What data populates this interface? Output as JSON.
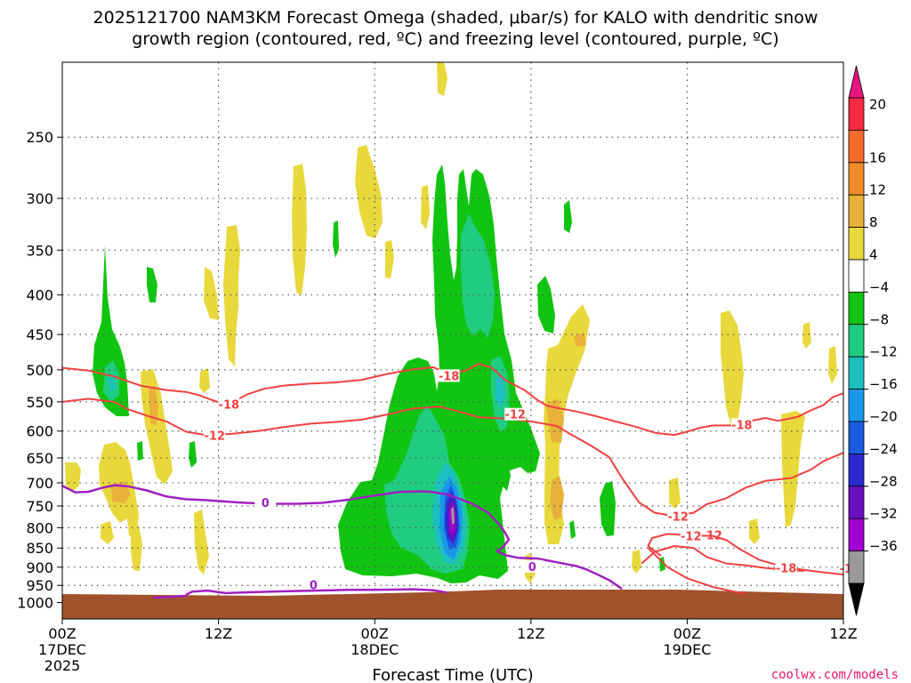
{
  "chart_data": {
    "type": "heatmap",
    "title_line1": "2025121700 NAM3KM Forecast Omega (shaded, μbar/s) for KALO with dendritic snow",
    "title_line2": "growth region (contoured, red, ºC) and freezing level (contoured, purple, ºC)",
    "xlabel": "Forecast Time (UTC)",
    "credit": "coolwx.com/models",
    "y_axis": {
      "scale": "log-pressure",
      "range": [
        1050,
        200
      ],
      "ticks": [
        250,
        300,
        350,
        400,
        450,
        500,
        550,
        600,
        650,
        700,
        750,
        800,
        850,
        900,
        950,
        1000
      ],
      "gridlines": true
    },
    "x_axis": {
      "range_hours": [
        0,
        60
      ],
      "ticks": [
        {
          "hour": 0,
          "label": "00Z",
          "sub1": "17DEC",
          "sub2": "2025"
        },
        {
          "hour": 12,
          "label": "12Z",
          "sub1": "",
          "sub2": ""
        },
        {
          "hour": 24,
          "label": "00Z",
          "sub1": "18DEC",
          "sub2": ""
        },
        {
          "hour": 36,
          "label": "12Z",
          "sub1": "",
          "sub2": ""
        },
        {
          "hour": 48,
          "label": "00Z",
          "sub1": "19DEC",
          "sub2": ""
        },
        {
          "hour": 60,
          "label": "12Z",
          "sub1": "",
          "sub2": ""
        }
      ],
      "gridlines": true
    },
    "colorbar": {
      "labels": [
        "20",
        "16",
        "12",
        "8",
        "4",
        "−4",
        "−8",
        "−12",
        "−16",
        "−20",
        "−24",
        "−28",
        "−32",
        "−36"
      ],
      "colors": [
        "#f52a42",
        "#f56a2a",
        "#f08c28",
        "#e8b23a",
        "#e8d83c",
        "#ffffff",
        "#11c411",
        "#20cc80",
        "#1cc0c0",
        "#1a98e8",
        "#1a5ce0",
        "#2a2ad0",
        "#6a10c0",
        "#a000d0",
        "#9a9a9a"
      ],
      "top_arrow_color": "#e8147e",
      "bottom_arrow_color": "#000000"
    },
    "ground_color": "#a0522d",
    "dgz_contours": [
      {
        "label": "-18",
        "color": "#f04040",
        "label_points": [
          [
            12.8,
            555
          ],
          [
            29.7,
            510
          ],
          [
            52.2,
            590
          ],
          [
            60.5,
            905
          ]
        ],
        "points": [
          [
            0,
            497
          ],
          [
            2,
            501
          ],
          [
            4,
            510
          ],
          [
            6,
            524
          ],
          [
            8,
            531
          ],
          [
            9.5,
            534
          ],
          [
            10.5,
            539
          ],
          [
            11.5,
            547
          ],
          [
            12.5,
            554
          ],
          [
            13.3,
            548
          ],
          [
            14.3,
            537
          ],
          [
            15.5,
            529
          ],
          [
            17,
            524
          ],
          [
            19,
            521
          ],
          [
            21,
            519
          ],
          [
            23,
            515
          ],
          [
            25,
            506
          ],
          [
            27,
            499
          ],
          [
            28.5,
            496
          ],
          [
            29.2,
            502
          ],
          [
            30,
            505
          ],
          [
            31,
            501
          ],
          [
            32,
            491
          ],
          [
            33,
            497
          ],
          [
            34,
            515
          ],
          [
            35.5,
            531
          ],
          [
            36.5,
            547
          ],
          [
            37.2,
            556
          ],
          [
            38,
            560
          ],
          [
            39.5,
            566
          ],
          [
            41,
            574
          ],
          [
            42.5,
            583
          ],
          [
            44,
            592
          ],
          [
            45.5,
            603
          ],
          [
            47,
            607
          ],
          [
            48,
            601
          ],
          [
            49,
            594
          ],
          [
            50,
            590
          ],
          [
            51.5,
            590
          ],
          [
            52.5,
            584
          ],
          [
            54,
            577
          ],
          [
            55,
            582
          ],
          [
            56.5,
            575
          ],
          [
            57.5,
            564
          ],
          [
            58.5,
            555
          ],
          [
            59.2,
            542
          ],
          [
            60,
            536
          ]
        ]
      },
      {
        "label": "-12",
        "color": "#f04040",
        "label_points": [
          [
            11.7,
            609
          ],
          [
            34.8,
            572
          ],
          [
            47.3,
            775
          ],
          [
            49.9,
            820
          ]
        ],
        "points": [
          [
            0,
            550
          ],
          [
            2,
            545
          ],
          [
            4,
            550
          ],
          [
            5,
            562
          ],
          [
            6.5,
            573
          ],
          [
            8,
            583
          ],
          [
            9.5,
            601
          ],
          [
            11,
            607
          ],
          [
            13,
            605
          ],
          [
            15,
            600
          ],
          [
            17,
            593
          ],
          [
            19,
            587
          ],
          [
            21,
            584
          ],
          [
            23,
            580
          ],
          [
            25,
            571
          ],
          [
            27,
            561
          ],
          [
            29,
            558
          ],
          [
            30.5,
            566
          ],
          [
            32,
            576
          ],
          [
            34,
            578
          ],
          [
            36,
            583
          ],
          [
            38,
            591
          ],
          [
            39,
            605
          ],
          [
            40.5,
            625
          ],
          [
            42,
            648
          ],
          [
            43,
            690
          ],
          [
            44.3,
            742
          ],
          [
            45.5,
            765
          ],
          [
            47,
            773
          ],
          [
            48.5,
            765
          ],
          [
            49.5,
            746
          ],
          [
            51,
            733
          ],
          [
            52.5,
            710
          ],
          [
            54,
            696
          ],
          [
            56,
            690
          ],
          [
            57.5,
            673
          ],
          [
            58.5,
            656
          ],
          [
            60,
            640
          ]
        ]
      },
      {
        "label": "-12",
        "color": "#f04040",
        "label_points": [
          [
            48.3,
            822
          ]
        ],
        "points": [
          [
            46,
            870
          ],
          [
            45,
            845
          ],
          [
            45.3,
            825
          ],
          [
            46.5,
            815
          ],
          [
            48,
            818
          ],
          [
            50,
            820
          ],
          [
            51,
            830
          ],
          [
            52,
            852
          ],
          [
            53.5,
            880
          ],
          [
            55,
            895
          ],
          [
            56.5,
            905
          ],
          [
            58,
            912
          ],
          [
            60,
            920
          ]
        ]
      },
      {
        "label": "-18",
        "color": "#f04040",
        "label_points": [
          [
            55.6,
            904
          ]
        ],
        "points": [
          [
            44.5,
            890
          ],
          [
            45.5,
            860
          ],
          [
            47,
            845
          ],
          [
            48.5,
            850
          ],
          [
            49.5,
            873
          ],
          [
            51,
            890
          ],
          [
            52.5,
            895
          ],
          [
            54,
            902
          ],
          [
            55.5,
            907
          ],
          [
            57,
            910
          ]
        ]
      },
      {
        "label": "-18",
        "color": "#f04040",
        "label_points": [],
        "points": [
          [
            45,
            850
          ],
          [
            46.5,
            900
          ],
          [
            48,
            930
          ],
          [
            50,
            955
          ],
          [
            52.5,
            975
          ]
        ]
      }
    ],
    "freezing_contours": [
      {
        "label": "0",
        "color": "#a020c0",
        "label_points": [
          [
            15.6,
            744
          ],
          [
            36.1,
            900
          ],
          [
            19.3,
            951
          ]
        ],
        "points": [
          [
            0,
            706
          ],
          [
            1,
            720
          ],
          [
            2,
            719
          ],
          [
            3,
            711
          ],
          [
            4,
            705
          ],
          [
            5,
            707
          ],
          [
            6.5,
            716
          ],
          [
            8,
            729
          ],
          [
            9.5,
            735
          ],
          [
            11,
            737
          ],
          [
            12.5,
            740
          ],
          [
            14,
            743
          ],
          [
            16,
            745
          ],
          [
            18,
            745
          ],
          [
            20,
            743
          ],
          [
            22,
            736
          ],
          [
            24,
            727
          ],
          [
            26,
            719
          ],
          [
            28,
            718
          ],
          [
            29.5,
            724
          ],
          [
            30.5,
            734
          ],
          [
            31.5,
            745
          ],
          [
            32.7,
            765
          ],
          [
            33.5,
            790
          ],
          [
            34,
            811
          ],
          [
            34.3,
            829
          ],
          [
            33.9,
            846
          ],
          [
            33.4,
            858
          ],
          [
            34,
            868
          ],
          [
            35,
            875
          ],
          [
            36.5,
            877
          ],
          [
            38,
            887
          ],
          [
            39.5,
            897
          ],
          [
            40.2,
            905
          ],
          [
            41,
            918
          ],
          [
            42,
            935
          ],
          [
            43,
            960
          ]
        ]
      },
      {
        "label": "0",
        "color": "#a020c0",
        "label_points": [],
        "points": [
          [
            7,
            985
          ],
          [
            8.5,
            983
          ],
          [
            9.5,
            980
          ],
          [
            9.6,
            975
          ],
          [
            10,
            968
          ],
          [
            11.2,
            965
          ],
          [
            12.5,
            972
          ],
          [
            14,
            970
          ],
          [
            17,
            967
          ],
          [
            22,
            963
          ],
          [
            24,
            963
          ],
          [
            27,
            961
          ],
          [
            28.5,
            964
          ],
          [
            29.5,
            970
          ]
        ]
      }
    ]
  }
}
